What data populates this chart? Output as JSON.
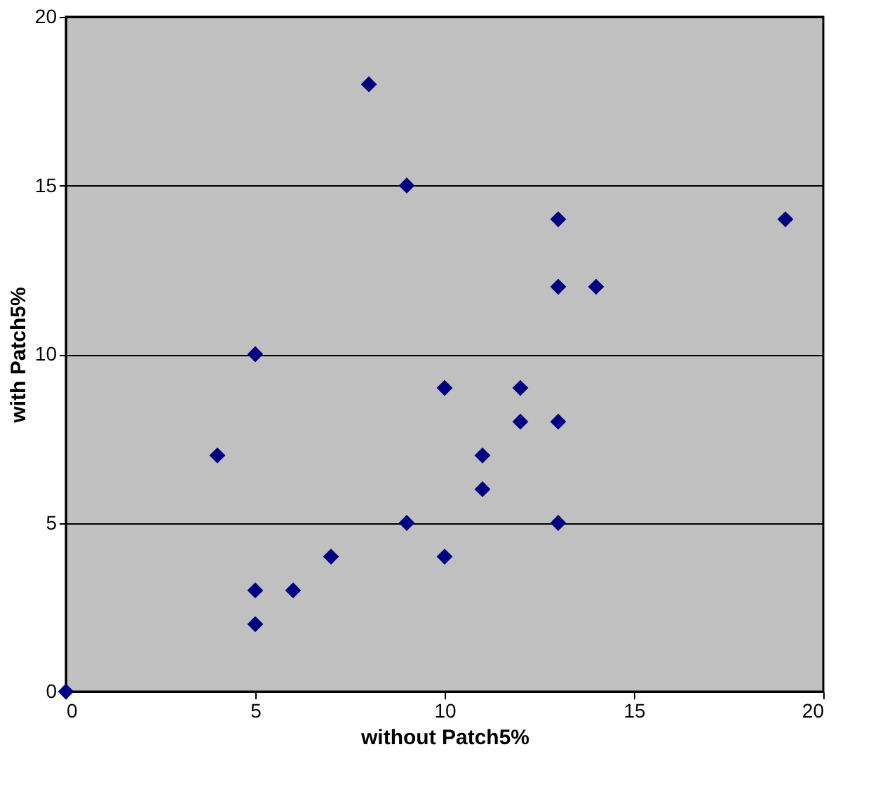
{
  "chart_data": {
    "type": "scatter",
    "xlabel": "without Patch5%",
    "ylabel": "with Patch5%",
    "x": [
      0,
      4,
      5,
      5,
      5,
      6,
      7,
      8,
      9,
      9,
      10,
      10,
      11,
      11,
      12,
      12,
      13,
      13,
      13,
      13,
      14,
      19
    ],
    "series": [
      {
        "color": "#000080",
        "values": [
          0,
          7,
          10,
          3,
          2,
          3,
          4,
          18,
          15,
          5,
          9,
          4,
          7,
          6,
          9,
          8,
          14,
          12,
          8,
          5,
          12,
          14
        ]
      }
    ],
    "xlim": [
      0,
      20
    ],
    "ylim": [
      0,
      20
    ],
    "xticks": [
      0,
      5,
      10,
      15,
      20
    ],
    "yticks": [
      0,
      5,
      10,
      15,
      20
    ],
    "grid": "y",
    "marker": "diamond",
    "legend": false
  }
}
